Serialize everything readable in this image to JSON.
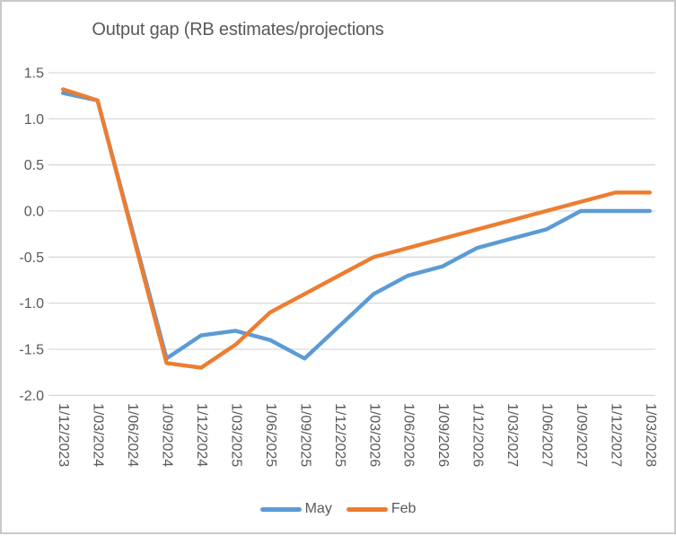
{
  "chart_data": {
    "type": "line",
    "title": "Output gap (RB estimates/projections",
    "categories": [
      "1/12/2023",
      "1/03/2024",
      "1/06/2024",
      "1/09/2024",
      "1/12/2024",
      "1/03/2025",
      "1/06/2025",
      "1/09/2025",
      "1/12/2025",
      "1/03/2026",
      "1/06/2026",
      "1/09/2026",
      "1/12/2026",
      "1/03/2027",
      "1/06/2027",
      "1/09/2027",
      "1/12/2027",
      "1/03/2028"
    ],
    "series": [
      {
        "name": "May",
        "color": "#5B9BD5",
        "values": [
          1.28,
          1.2,
          null,
          -1.6,
          -1.35,
          -1.3,
          -1.4,
          -1.6,
          -1.25,
          -0.9,
          -0.7,
          -0.6,
          -0.4,
          -0.3,
          -0.2,
          0.0,
          0.0,
          0.0
        ]
      },
      {
        "name": "Feb",
        "color": "#ED7D31",
        "values": [
          1.32,
          1.2,
          null,
          -1.65,
          -1.7,
          -1.45,
          -1.1,
          -0.9,
          -0.7,
          -0.5,
          -0.4,
          -0.3,
          -0.2,
          -0.1,
          0.0,
          0.1,
          0.2,
          0.2
        ]
      }
    ],
    "y_axis": {
      "min": -2.0,
      "max": 1.5,
      "step": 0.5,
      "tick_labels": [
        "1.5",
        "1.0",
        "0.5",
        "0.0",
        "-0.5",
        "-1.0",
        "-1.5",
        "-2.0"
      ]
    },
    "x_axis": {
      "label_rotation_deg": 90
    },
    "grid": true,
    "legend_position": "bottom",
    "colors": {
      "grid": "#D9D9D9",
      "text": "#595959",
      "frame": "#C9C9C9",
      "background": "#FFFFFF"
    }
  }
}
